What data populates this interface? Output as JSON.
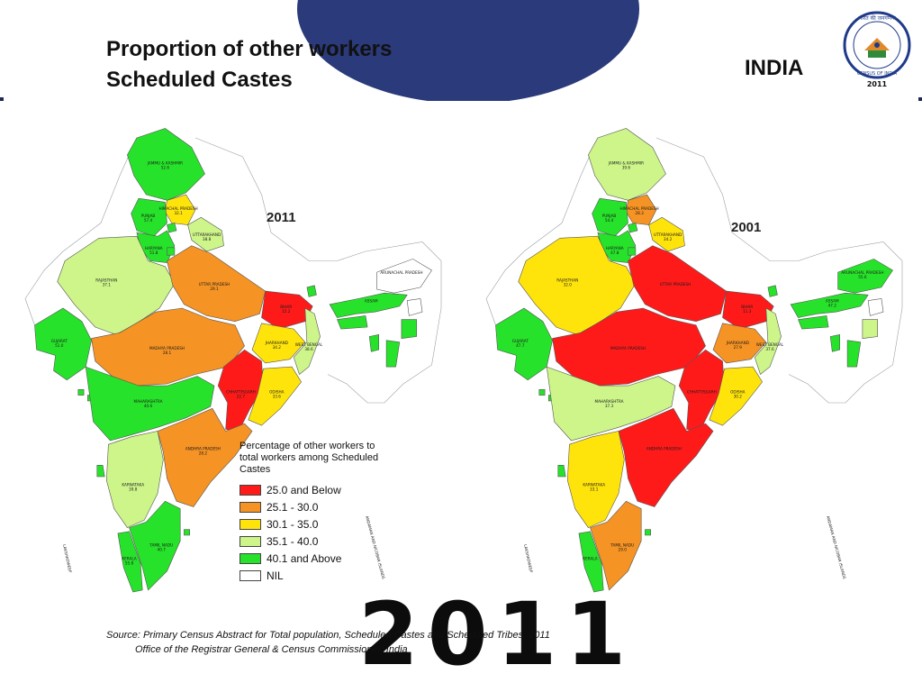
{
  "slide": {
    "title_line1": "Proportion of other workers",
    "title_line2": "Scheduled Castes",
    "country": "INDIA",
    "watermark_year": "2011",
    "logo": {
      "icon": "census-of-india-seal",
      "top_text": "भारत की जनगणना",
      "bottom_text": "CENSUS OF INDIA",
      "year": "2011"
    }
  },
  "colors": {
    "25.0 and Below": "#ff1a1a",
    "25.1 - 30.0": "#f59324",
    "30.1 - 35.0": "#ffe40c",
    "35.1 - 40.0": "#cdf58a",
    "40.1 and Above": "#27e22a",
    "NIL": "#ffffff",
    "watermark": "#1f2a5a"
  },
  "maps": [
    {
      "year": "2011",
      "states": [
        {
          "name": "JAMMU & KASHMIR",
          "value": "52.6",
          "class": "40.1 and Above"
        },
        {
          "name": "HIMACHAL PRADESH",
          "value": "32.1",
          "class": "30.1 - 35.0"
        },
        {
          "name": "PUNJAB",
          "value": "57.4",
          "class": "40.1 and Above"
        },
        {
          "name": "CHANDIGARH",
          "value": "",
          "class": "40.1 and Above"
        },
        {
          "name": "UTTARAKHAND",
          "value": "38.8",
          "class": "35.1 - 40.0"
        },
        {
          "name": "HARYANA",
          "value": "51.8",
          "class": "40.1 and Above"
        },
        {
          "name": "NCT OF DELHI",
          "value": "96.1",
          "class": "40.1 and Above"
        },
        {
          "name": "RAJASTHAN",
          "value": "37.1",
          "class": "35.1 - 40.0"
        },
        {
          "name": "UTTAR PRADESH",
          "value": "29.1",
          "class": "25.1 - 30.0"
        },
        {
          "name": "BIHAR",
          "value": "15.2",
          "class": "25.0 and Below"
        },
        {
          "name": "SIKKIM",
          "value": "54.5",
          "class": "40.1 and Above"
        },
        {
          "name": "ARUNACHAL PRADESH",
          "value": "",
          "class": "NIL"
        },
        {
          "name": "ASSAM",
          "value": "",
          "class": "40.1 and Above"
        },
        {
          "name": "NAGALAND",
          "value": "",
          "class": "NIL"
        },
        {
          "name": "MEGHALAYA",
          "value": "",
          "class": "40.1 and Above"
        },
        {
          "name": "MANIPUR",
          "value": "",
          "class": "40.1 and Above"
        },
        {
          "name": "TRIPURA",
          "value": "",
          "class": "40.1 and Above"
        },
        {
          "name": "MIZORAM",
          "value": "",
          "class": "40.1 and Above"
        },
        {
          "name": "GUJARAT",
          "value": "51.0",
          "class": "40.1 and Above"
        },
        {
          "name": "MADHYA PRADESH",
          "value": "28.1",
          "class": "25.1 - 30.0"
        },
        {
          "name": "JHARKHAND",
          "value": "34.2",
          "class": "30.1 - 35.0"
        },
        {
          "name": "WEST BENGAL",
          "value": "38.6",
          "class": "35.1 - 40.0"
        },
        {
          "name": "CHHATTISGARH",
          "value": "22.7",
          "class": "25.0 and Below"
        },
        {
          "name": "ODISHA",
          "value": "33.6",
          "class": "30.1 - 35.0"
        },
        {
          "name": "DAMAN & DIU",
          "value": "56.3",
          "class": "40.1 and Above"
        },
        {
          "name": "DADRA & NAGAR HAVELI",
          "value": "51.9",
          "class": "40.1 and Above"
        },
        {
          "name": "MAHARASHTRA",
          "value": "40.6",
          "class": "40.1 and Above"
        },
        {
          "name": "ANDHRA PRADESH",
          "value": "28.2",
          "class": "25.1 - 30.0"
        },
        {
          "name": "GOA",
          "value": "69.0",
          "class": "40.1 and Above"
        },
        {
          "name": "KARNATAKA",
          "value": "39.8",
          "class": "35.1 - 40.0"
        },
        {
          "name": "PUDUCHERRY",
          "value": "58.2",
          "class": "40.1 and Above"
        },
        {
          "name": "KERALA",
          "value": "55.8",
          "class": "40.1 and Above"
        },
        {
          "name": "TAMIL NADU",
          "value": "40.7",
          "class": "40.1 and Above"
        }
      ]
    },
    {
      "year": "2001",
      "states": [
        {
          "name": "JAMMU & KASHMIR",
          "value": "39.6",
          "class": "35.1 - 40.0"
        },
        {
          "name": "HIMACHAL PRADESH",
          "value": "28.3",
          "class": "25.1 - 30.0"
        },
        {
          "name": "PUNJAB",
          "value": "54.4",
          "class": "40.1 and Above"
        },
        {
          "name": "CHANDIGARH",
          "value": "",
          "class": "40.1 and Above"
        },
        {
          "name": "UTTARAKHAND",
          "value": "34.2",
          "class": "30.1 - 35.0"
        },
        {
          "name": "HARYANA",
          "value": "47.8",
          "class": "40.1 and Above"
        },
        {
          "name": "NCT OF DELHI",
          "value": "",
          "class": "40.1 and Above"
        },
        {
          "name": "RAJASTHAN",
          "value": "32.0",
          "class": "30.1 - 35.0"
        },
        {
          "name": "UTTAR PRADESH",
          "value": "",
          "class": "25.0 and Below"
        },
        {
          "name": "BIHAR",
          "value": "11.3",
          "class": "25.0 and Below"
        },
        {
          "name": "SIKKIM",
          "value": "41.6",
          "class": "40.1 and Above"
        },
        {
          "name": "ARUNACHAL PRADESH",
          "value": "55.6",
          "class": "40.1 and Above"
        },
        {
          "name": "ASSAM",
          "value": "47.2",
          "class": "40.1 and Above"
        },
        {
          "name": "NAGALAND",
          "value": "",
          "class": "NIL"
        },
        {
          "name": "MEGHALAYA",
          "value": "",
          "class": "40.1 and Above"
        },
        {
          "name": "MANIPUR",
          "value": "35.6",
          "class": "35.1 - 40.0"
        },
        {
          "name": "TRIPURA",
          "value": "",
          "class": "40.1 and Above"
        },
        {
          "name": "MIZORAM",
          "value": "",
          "class": "40.1 and Above"
        },
        {
          "name": "GUJARAT",
          "value": "47.7",
          "class": "40.1 and Above"
        },
        {
          "name": "MADHYA PRADESH",
          "value": "",
          "class": "25.0 and Below"
        },
        {
          "name": "JHARKHAND",
          "value": "27.9",
          "class": "25.1 - 30.0"
        },
        {
          "name": "WEST BENGAL",
          "value": "37.6",
          "class": "35.1 - 40.0"
        },
        {
          "name": "CHHATTISGARH",
          "value": "",
          "class": "25.0 and Below"
        },
        {
          "name": "ODISHA",
          "value": "30.2",
          "class": "30.1 - 35.0"
        },
        {
          "name": "DAMAN & DIU",
          "value": "",
          "class": "40.1 and Above"
        },
        {
          "name": "DADRA & NAGAR HAVELI",
          "value": "81.9",
          "class": "40.1 and Above"
        },
        {
          "name": "MAHARASHTRA",
          "value": "37.3",
          "class": "35.1 - 40.0"
        },
        {
          "name": "ANDHRA PRADESH",
          "value": "",
          "class": "25.0 and Below"
        },
        {
          "name": "GOA",
          "value": "74.0",
          "class": "40.1 and Above"
        },
        {
          "name": "KARNATAKA",
          "value": "33.1",
          "class": "30.1 - 35.0"
        },
        {
          "name": "PUDUCHERRY",
          "value": "42.6",
          "class": "40.1 and Above"
        },
        {
          "name": "KERALA",
          "value": "",
          "class": "40.1 and Above"
        },
        {
          "name": "TAMIL NADU",
          "value": "29.0",
          "class": "25.1 - 30.0"
        }
      ]
    }
  ],
  "legend": {
    "title": "Percentage of other workers to total workers among Scheduled Castes",
    "items": [
      {
        "label": "25.0 and Below"
      },
      {
        "label": "25.1 - 30.0"
      },
      {
        "label": "30.1 - 35.0"
      },
      {
        "label": "35.1 - 40.0"
      },
      {
        "label": "40.1 and Above"
      },
      {
        "label": "NIL"
      }
    ]
  },
  "map_labels": {
    "andaman": "ANDAMAN AND NICOBAR ISLANDS",
    "lakshadweep": "LAKSHADWEEP"
  },
  "source": {
    "line1": "Source: Primary Census Abstract for Total population, Scheduled Castes and Scheduled Tribes, 2011",
    "line2": "Office of the Registrar General & Census Commissioner, India"
  }
}
